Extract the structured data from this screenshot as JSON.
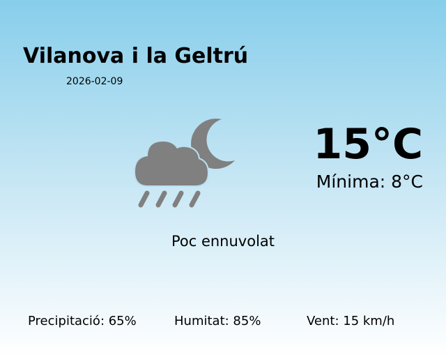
{
  "location": {
    "city": "Vilanova i la Geltrú",
    "date": "2026-02-09"
  },
  "current": {
    "temperature": "15°C",
    "minimum": "Mínima: 8°C",
    "condition": "Poc ennuvolat",
    "icon": "rain-cloud-moon-icon",
    "icon_color": "#808080"
  },
  "stats": {
    "precipitation": "Precipitació: 65%",
    "humidity": "Humitat: 85%",
    "wind": "Vent: 15 km/h"
  }
}
